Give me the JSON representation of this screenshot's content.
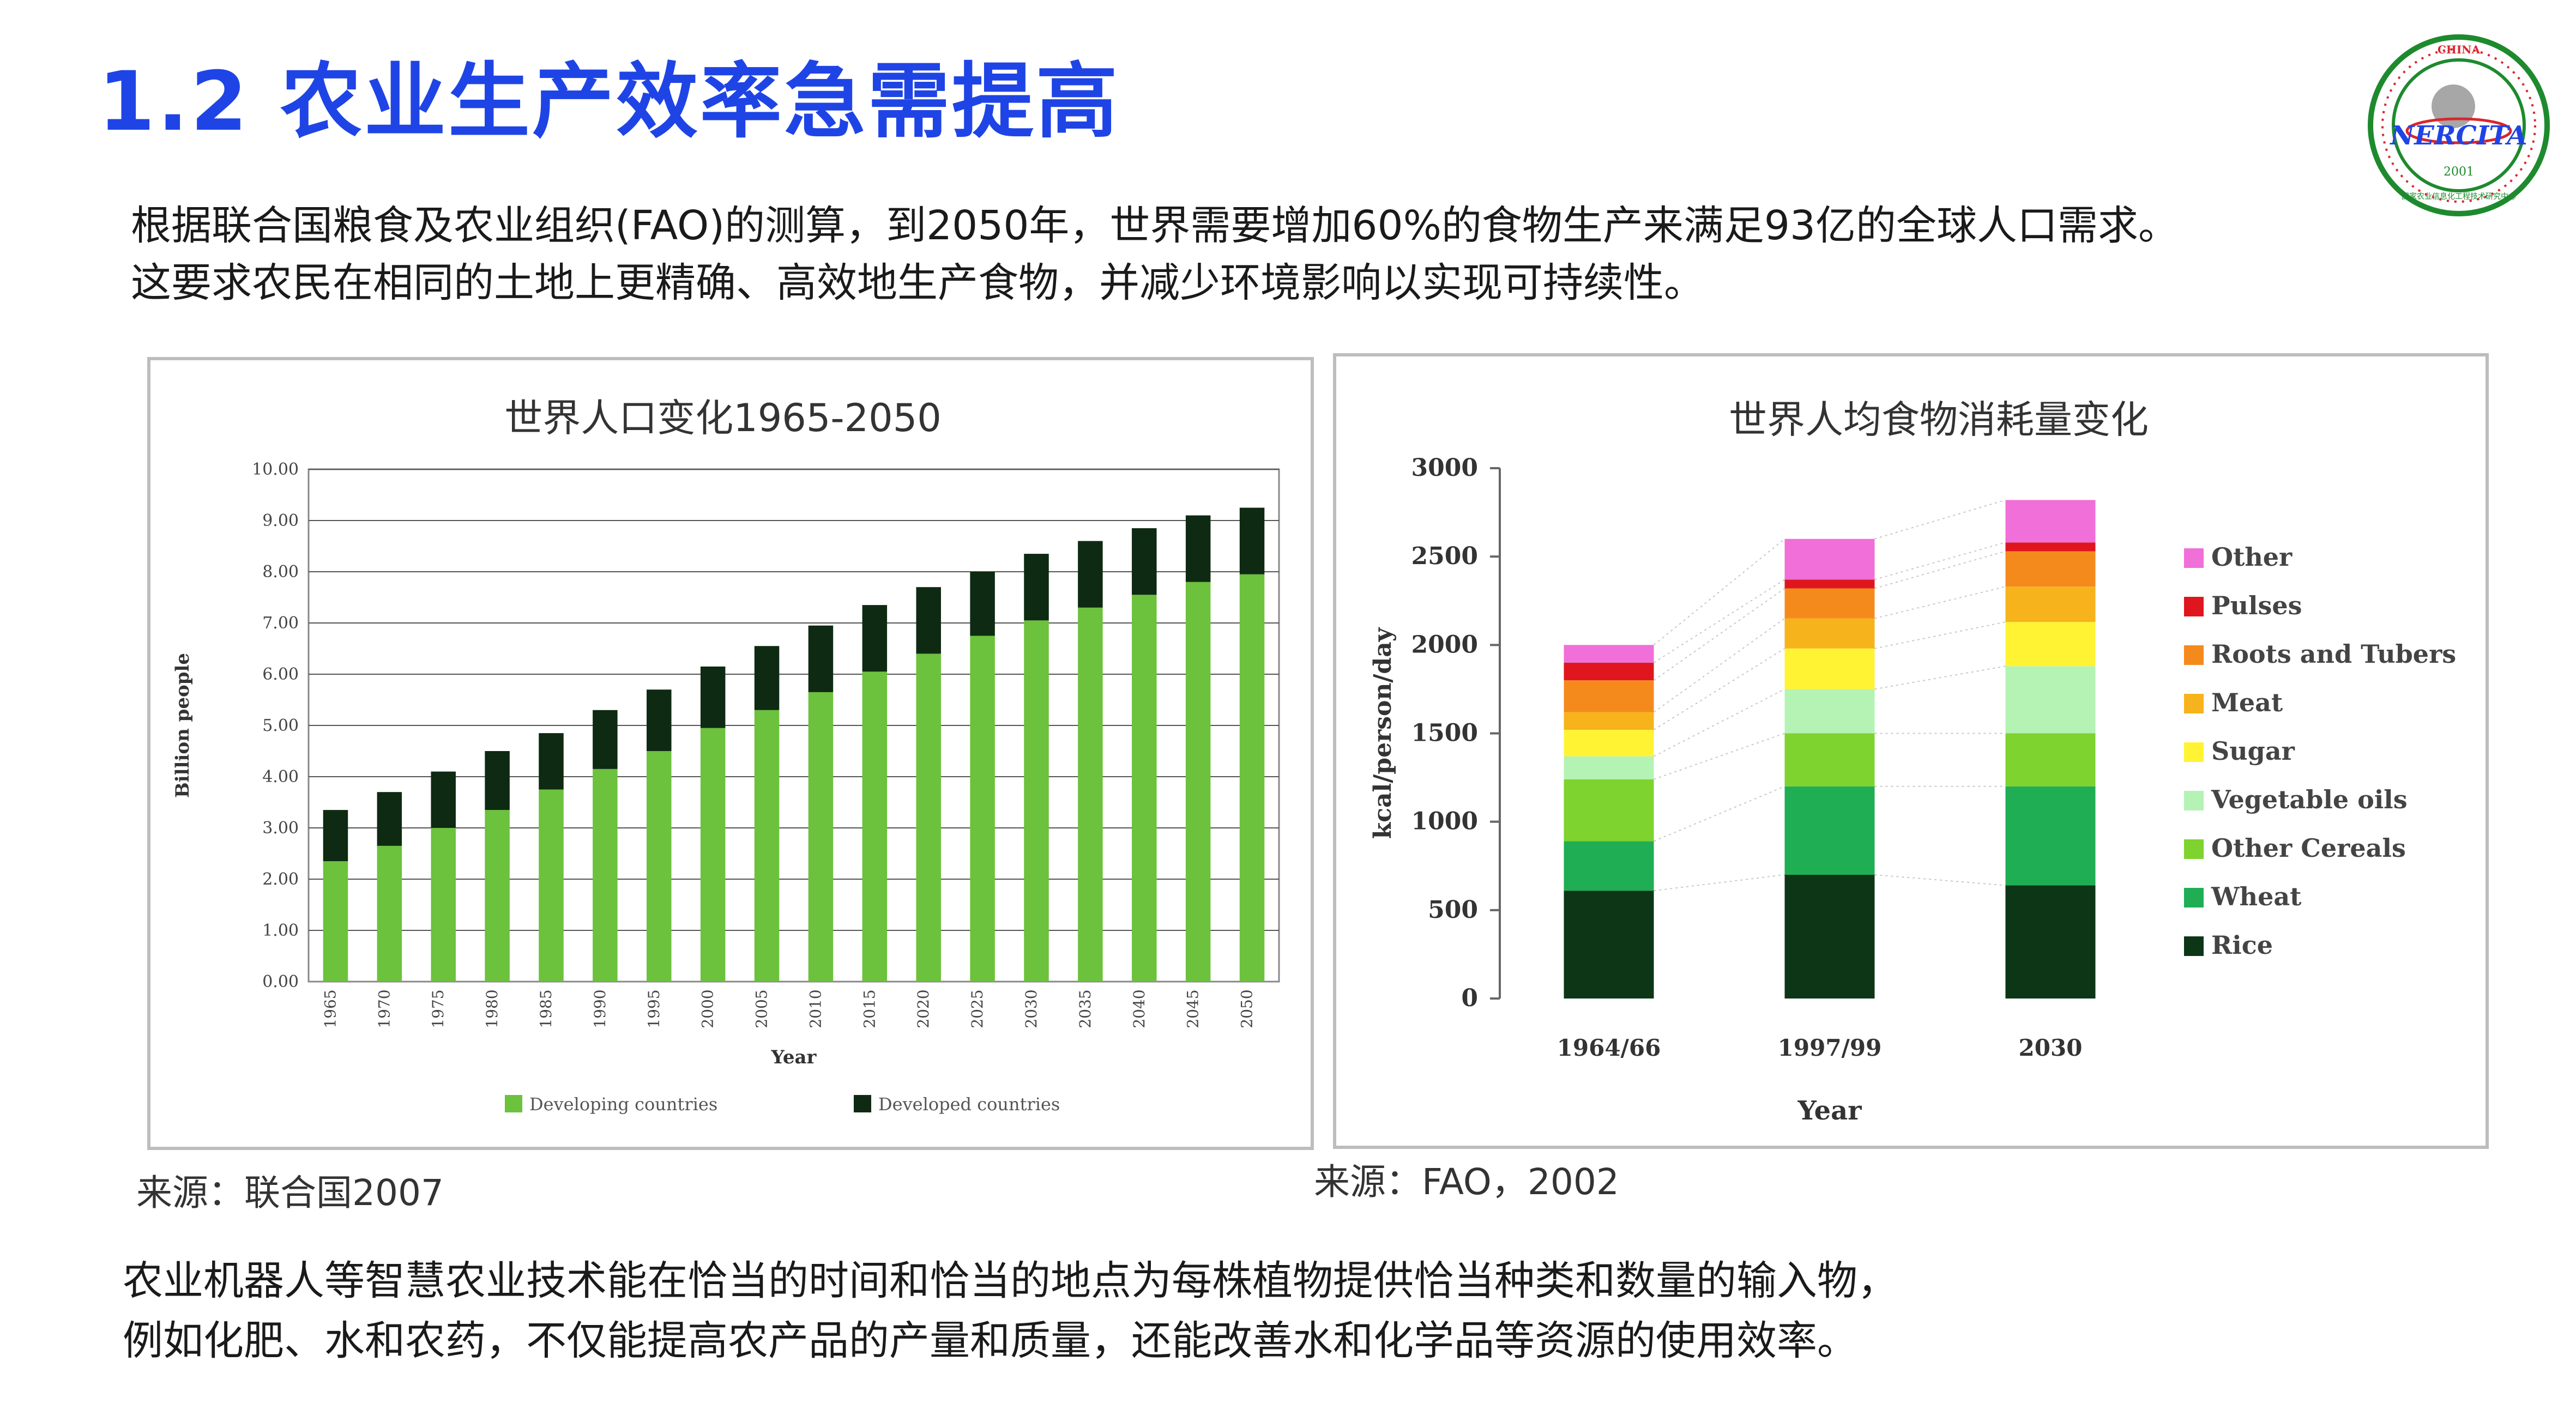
{
  "slide": {
    "title": "1.2 农业生产效率急需提高",
    "intro_lines": [
      "根据联合国粮食及农业组织(FAO)的测算，到2050年，世界需要增加60%的食物生产来满足93亿的全球人口需求。",
      "这要求农民在相同的土地上更精确、高效地生产食物，并减少环境影响以实现可持续性。"
    ],
    "outro_lines": [
      "农业机器人等智慧农业技术能在恰当的时间和恰当的地点为每株植物提供恰当种类和数量的输入物，",
      "例如化肥、水和农药，不仅能提高农产品的产量和质量，还能改善水和化学品等资源的使用效率。"
    ],
    "logo": {
      "top_text": "CHINA",
      "ring_text": "国家农业信息化工程技术研究中心",
      "name": "NERCITA",
      "year": "2001",
      "colors": {
        "ring": "#1e8a2e",
        "accent": "#d8262e",
        "text": "#1f44e6"
      }
    }
  },
  "colors": {
    "title": "#1f44e6"
  },
  "sources": [
    "来源：联合国2007",
    "来源：FAO，2002"
  ],
  "chart_data": [
    {
      "type": "bar",
      "stacked": true,
      "title": "世界人口变化1965-2050",
      "xlabel": "Year",
      "ylabel": "Billion people",
      "ylim": [
        0,
        10
      ],
      "yticks": [
        "0.00",
        "1.00",
        "2.00",
        "3.00",
        "4.00",
        "5.00",
        "6.00",
        "7.00",
        "8.00",
        "9.00",
        "10.00"
      ],
      "grid": true,
      "legend_position": "bottom",
      "categories": [
        "1965",
        "1970",
        "1975",
        "1980",
        "1985",
        "1990",
        "1995",
        "2000",
        "2005",
        "2010",
        "2015",
        "2020",
        "2025",
        "2030",
        "2035",
        "2040",
        "2045",
        "2050"
      ],
      "series": [
        {
          "name": "Developing countries",
          "color": "#6cc13d",
          "values": [
            2.35,
            2.65,
            3.0,
            3.35,
            3.75,
            4.15,
            4.5,
            4.95,
            5.3,
            5.65,
            6.05,
            6.4,
            6.75,
            7.05,
            7.3,
            7.55,
            7.8,
            7.95
          ]
        },
        {
          "name": "Developed countries",
          "color": "#0e2a12",
          "values": [
            1.0,
            1.05,
            1.1,
            1.15,
            1.1,
            1.15,
            1.2,
            1.2,
            1.25,
            1.3,
            1.3,
            1.3,
            1.25,
            1.3,
            1.3,
            1.3,
            1.3,
            1.3
          ]
        }
      ]
    },
    {
      "type": "bar",
      "stacked": true,
      "title": "世界人均食物消耗量变化",
      "xlabel": "Year",
      "ylabel": "kcal/person/day",
      "ylim": [
        0,
        3000
      ],
      "yticks": [
        "0",
        "500",
        "1000",
        "1500",
        "2000",
        "2500",
        "3000"
      ],
      "grid": false,
      "legend_position": "right",
      "categories": [
        "1964/66",
        "1997/99",
        "2030"
      ],
      "series": [
        {
          "name": "Rice",
          "color": "#0c3616",
          "values": [
            610,
            700,
            640
          ]
        },
        {
          "name": "Wheat",
          "color": "#1fae53",
          "values": [
            280,
            500,
            560
          ]
        },
        {
          "name": "Other Cereals",
          "color": "#7ed32f",
          "values": [
            350,
            300,
            300
          ]
        },
        {
          "name": "Vegetable oils",
          "color": "#b4f3b4",
          "values": [
            130,
            250,
            380
          ]
        },
        {
          "name": "Sugar",
          "color": "#fff334",
          "values": [
            150,
            230,
            250
          ]
        },
        {
          "name": "Meat",
          "color": "#f6b31b",
          "values": [
            100,
            170,
            200
          ]
        },
        {
          "name": "Roots and Tubers",
          "color": "#f58a1c",
          "values": [
            180,
            170,
            200
          ]
        },
        {
          "name": "Pulses",
          "color": "#e0161f",
          "values": [
            100,
            50,
            50
          ]
        },
        {
          "name": "Other",
          "color": "#f06fd8",
          "values": [
            100,
            230,
            240
          ]
        }
      ]
    }
  ]
}
